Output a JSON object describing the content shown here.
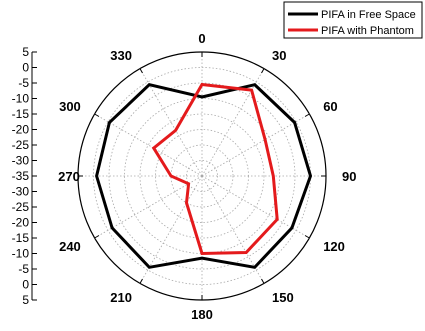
{
  "chart_data": {
    "type": "polar",
    "title": "",
    "radial_ticks_top": [
      "5",
      "0",
      "-5",
      "-10",
      "-15",
      "-20",
      "-25",
      "-30",
      "-35"
    ],
    "radial_ticks_bottom": [
      "-30",
      "-25",
      "-20",
      "-15",
      "-10",
      "-5",
      "0",
      "5"
    ],
    "rlim": [
      -35,
      5
    ],
    "angle_labels": [
      "0",
      "30",
      "60",
      "90",
      "120",
      "150",
      "180",
      "210",
      "240",
      "270",
      "300",
      "330"
    ],
    "angles_deg": [
      0,
      30,
      60,
      90,
      120,
      150,
      180,
      210,
      240,
      270,
      300,
      330
    ],
    "grid": true,
    "legend_position": "top-right",
    "series": [
      {
        "name": "PIFA in Free Space",
        "color": "#000000",
        "values": [
          -9.5,
          -1,
          -0.5,
          0,
          -1.5,
          -1,
          -8.5,
          -1,
          -1.5,
          -1,
          -0.5,
          -1
        ]
      },
      {
        "name": "PIFA with Phantom",
        "color": "#e41a1c",
        "values": [
          -5.5,
          -3,
          -11.5,
          -12,
          -7,
          -6.5,
          -10,
          -25,
          -30,
          -25,
          -17,
          -18
        ]
      }
    ]
  }
}
